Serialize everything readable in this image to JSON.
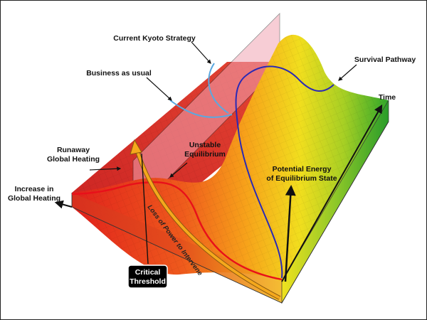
{
  "labels": {
    "kyoto": "Current Kyoto Strategy",
    "business": "Business as usual",
    "survival": "Survival Pathway",
    "time": "Time",
    "runaway_1": "Runaway",
    "runaway_2": "Global Heating",
    "unstable_1": "Unstable",
    "unstable_2": "Equilibrium",
    "increase_1": "Increase in",
    "increase_2": "Global Heating",
    "potential_1": "Potential Energy",
    "potential_2": "of Equilibrium State",
    "loss": "Loss of Power to Intervene",
    "critical_1": "Critical",
    "critical_2": "Threshold"
  },
  "colors": {
    "hot": "#e21d1d",
    "warm": "#f7a21a",
    "mid": "#f4e21a",
    "cool": "#3fae2a",
    "path_blue": "#2a2ab5",
    "path_red": "#e8101a",
    "path_light_blue": "#5aa8e0",
    "pink_plane": "#f2a5b4",
    "arrow_yellow": "#f5a81c"
  }
}
